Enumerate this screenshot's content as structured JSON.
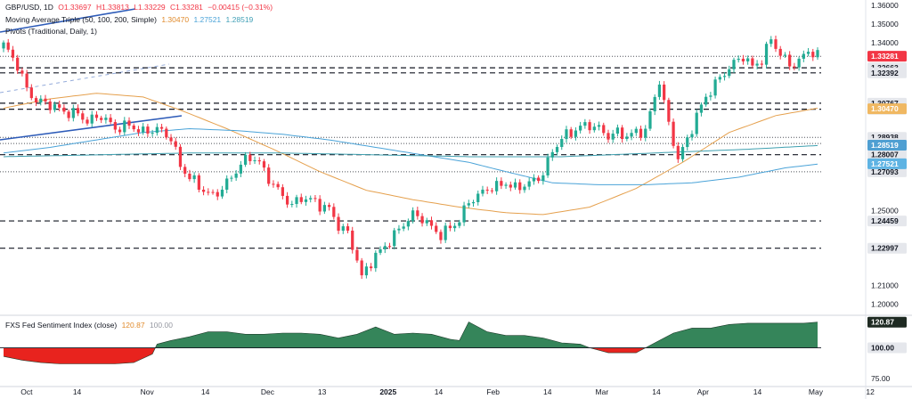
{
  "header": {
    "symbol": "GBP/USD, 1D",
    "open": "O1.33697",
    "high": "H1.33813",
    "low": "L1.33229",
    "close": "C1.33281",
    "change": "−0.00415 (−0.31%)",
    "ma_label": "Moving Average Triple (50, 100, 200, Simple)",
    "ma50": "1.30470",
    "ma100": "1.27521",
    "ma200": "1.28519",
    "pivots_label": "Pivots (Traditional, Daily, 1)",
    "sentiment_label": "FXS Fed Sentiment Index (close)",
    "sentiment_value": "120.87",
    "sentiment_ref": "100.00"
  },
  "colors": {
    "up": "#22ab94",
    "down": "#f23645",
    "ma50": "#e5a04d",
    "ma100": "#4aa3d8",
    "ma200": "#3fa0b0",
    "trendline": "#2d5bb8",
    "sentiment_pos": "#35855a",
    "sentiment_neg": "#e8231e",
    "price_tag": "#f23645",
    "level_tag": "#e5e7ec",
    "ma50_tag": "#f0b862",
    "ma100_tag": "#5eb3e3",
    "ma200_tag": "#4f9fd2"
  },
  "chart_data": [
    {
      "type": "candlestick",
      "title": "GBP/USD, 1D",
      "y_axis": {
        "range": [
          1.195,
          1.362
        ],
        "ticks": [
          "1.36000",
          "1.35000",
          "1.34000",
          "1.25000",
          "1.21000",
          "1.20000"
        ]
      },
      "x_axis": {
        "labels": [
          "Oct",
          "14",
          "Nov",
          "14",
          "Dec",
          "13",
          "2025",
          "14",
          "Feb",
          "14",
          "Mar",
          "14",
          "Apr",
          "14",
          "May",
          "12"
        ]
      },
      "price_tag": "1.33281",
      "level_tags": [
        "1.32663",
        "1.32392",
        "1.30767",
        "1.30445",
        "1.28938",
        "1.28605",
        "1.28007",
        "1.27093",
        "1.24459",
        "1.22997"
      ],
      "ma_tags": {
        "ma50": "1.30470",
        "ma100": "1.27521",
        "ma200": "1.28519"
      },
      "dashed_levels": [
        1.32663,
        1.32392,
        1.30767,
        1.30445,
        1.28007,
        1.24459,
        1.22997
      ],
      "dotted_levels": [
        1.28938,
        1.28605,
        1.27093,
        1.3328
      ],
      "close_path": [
        [
          0,
          1.339
        ],
        [
          3,
          1.328
        ],
        [
          5,
          1.315
        ],
        [
          7,
          1.309
        ],
        [
          10,
          1.307
        ],
        [
          13,
          1.303
        ],
        [
          16,
          1.302
        ],
        [
          18,
          1.298
        ],
        [
          21,
          1.301
        ],
        [
          24,
          1.294
        ],
        [
          27,
          1.296
        ],
        [
          30,
          1.292
        ],
        [
          33,
          1.294
        ],
        [
          36,
          1.289
        ],
        [
          38,
          1.274
        ],
        [
          40,
          1.268
        ],
        [
          43,
          1.261
        ],
        [
          45,
          1.258
        ],
        [
          47,
          1.262
        ],
        [
          49,
          1.268
        ],
        [
          51,
          1.275
        ],
        [
          53,
          1.279
        ],
        [
          55,
          1.276
        ],
        [
          56,
          1.271
        ],
        [
          58,
          1.264
        ],
        [
          60,
          1.258
        ],
        [
          62,
          1.253
        ],
        [
          64,
          1.257
        ],
        [
          66,
          1.256
        ],
        [
          68,
          1.253
        ],
        [
          70,
          1.251
        ],
        [
          72,
          1.242
        ],
        [
          74,
          1.238
        ],
        [
          75,
          1.231
        ],
        [
          76,
          1.224
        ],
        [
          77,
          1.214
        ],
        [
          78,
          1.219
        ],
        [
          80,
          1.226
        ],
        [
          82,
          1.231
        ],
        [
          84,
          1.237
        ],
        [
          86,
          1.243
        ],
        [
          88,
          1.248
        ],
        [
          90,
          1.246
        ],
        [
          92,
          1.241
        ],
        [
          94,
          1.237
        ],
        [
          96,
          1.241
        ],
        [
          98,
          1.245
        ],
        [
          100,
          1.255
        ],
        [
          102,
          1.258
        ],
        [
          104,
          1.262
        ],
        [
          106,
          1.263
        ],
        [
          108,
          1.265
        ],
        [
          110,
          1.262
        ],
        [
          112,
          1.264
        ],
        [
          114,
          1.266
        ],
        [
          116,
          1.27
        ],
        [
          118,
          1.282
        ],
        [
          120,
          1.289
        ],
        [
          122,
          1.292
        ],
        [
          124,
          1.295
        ],
        [
          126,
          1.296
        ],
        [
          128,
          1.294
        ],
        [
          130,
          1.29
        ],
        [
          132,
          1.292
        ],
        [
          134,
          1.29
        ],
        [
          136,
          1.292
        ],
        [
          138,
          1.293
        ],
        [
          139,
          1.302
        ],
        [
          140,
          1.311
        ],
        [
          141,
          1.32
        ],
        [
          143,
          1.296
        ],
        [
          145,
          1.278
        ],
        [
          147,
          1.288
        ],
        [
          149,
          1.301
        ],
        [
          151,
          1.311
        ],
        [
          153,
          1.318
        ],
        [
          155,
          1.324
        ],
        [
          157,
          1.329
        ],
        [
          159,
          1.333
        ],
        [
          161,
          1.327
        ],
        [
          163,
          1.331
        ],
        [
          165,
          1.342
        ],
        [
          167,
          1.334
        ],
        [
          169,
          1.328
        ],
        [
          171,
          1.33
        ],
        [
          173,
          1.336
        ],
        [
          175,
          1.333
        ]
      ],
      "series": [
        {
          "name": "50",
          "points": [
            [
              0,
              1.305
            ],
            [
              10,
              1.31
            ],
            [
              20,
              1.313
            ],
            [
              30,
              1.311
            ],
            [
              38,
              1.304
            ],
            [
              48,
              1.294
            ],
            [
              58,
              1.283
            ],
            [
              68,
              1.271
            ],
            [
              78,
              1.261
            ],
            [
              88,
              1.256
            ],
            [
              98,
              1.252
            ],
            [
              108,
              1.249
            ],
            [
              116,
              1.248
            ],
            [
              126,
              1.252
            ],
            [
              136,
              1.262
            ],
            [
              146,
              1.276
            ],
            [
              156,
              1.292
            ],
            [
              166,
              1.301
            ],
            [
              175,
              1.305
            ]
          ]
        },
        {
          "name": "100",
          "points": [
            [
              0,
              1.281
            ],
            [
              10,
              1.284
            ],
            [
              20,
              1.288
            ],
            [
              30,
              1.292
            ],
            [
              40,
              1.294
            ],
            [
              50,
              1.293
            ],
            [
              60,
              1.291
            ],
            [
              70,
              1.288
            ],
            [
              80,
              1.284
            ],
            [
              90,
              1.28
            ],
            [
              100,
              1.276
            ],
            [
              108,
              1.271
            ],
            [
              118,
              1.265
            ],
            [
              128,
              1.264
            ],
            [
              138,
              1.264
            ],
            [
              148,
              1.265
            ],
            [
              158,
              1.268
            ],
            [
              168,
              1.273
            ],
            [
              175,
              1.275
            ]
          ]
        },
        {
          "name": "200",
          "points": [
            [
              0,
              1.279
            ],
            [
              20,
              1.28
            ],
            [
              40,
              1.281
            ],
            [
              60,
              1.281
            ],
            [
              80,
              1.28
            ],
            [
              100,
              1.279
            ],
            [
              120,
              1.279
            ],
            [
              140,
              1.281
            ],
            [
              160,
              1.283
            ],
            [
              175,
              1.285
            ]
          ]
        }
      ]
    },
    {
      "type": "area",
      "title": "FXS Fed Sentiment Index (close)",
      "baseline": 100,
      "y_range": [
        70,
        125
      ],
      "ticks": [
        "75.00"
      ],
      "tags": [
        "120.87",
        "100.00"
      ],
      "x": [
        0,
        4,
        8,
        12,
        16,
        20,
        24,
        28,
        32,
        33,
        36,
        40,
        44,
        48,
        52,
        56,
        60,
        64,
        68,
        72,
        76,
        80,
        84,
        88,
        92,
        96,
        98,
        100,
        104,
        108,
        112,
        116,
        120,
        124,
        126,
        130,
        132,
        136,
        140,
        144,
        148,
        152,
        156,
        160,
        164,
        168,
        172,
        175
      ],
      "values": [
        93,
        90,
        88,
        87,
        87,
        87,
        87,
        88,
        95,
        103,
        106,
        109,
        113,
        113,
        111,
        111,
        112,
        112,
        111,
        108,
        111,
        117,
        111,
        112,
        111,
        107,
        106,
        121,
        113,
        110,
        110,
        108,
        104,
        103,
        100,
        96,
        96,
        96,
        104,
        112,
        116,
        116,
        119,
        120,
        120,
        120,
        120,
        120.87
      ]
    }
  ]
}
